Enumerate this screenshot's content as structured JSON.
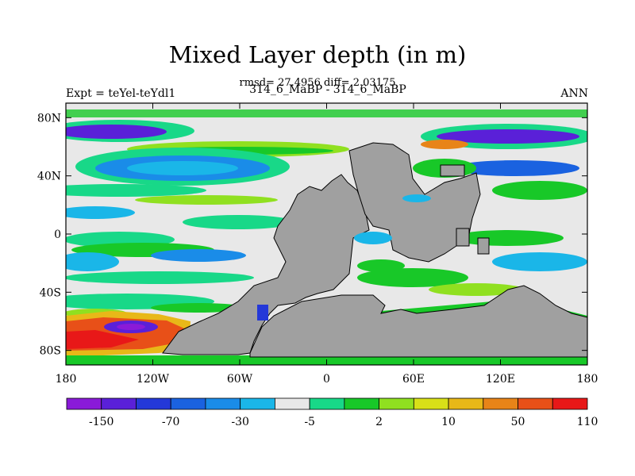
{
  "title": "Mixed Layer depth (in m)",
  "subtitle": "rmsd= 27.4956 diff= 2.03175",
  "left_label": "Expt = teYel-teYdl1",
  "center_label": "314_6_MaBP - 314_6_MaBP",
  "right_label": "ANN",
  "lon_ticks": [
    "180",
    "120W",
    "60W",
    "0",
    "60E",
    "120E",
    "180"
  ],
  "lat_ticks": [
    "80N",
    "40N",
    "0",
    "40S",
    "80S"
  ],
  "colorbar": {
    "labels": [
      "-150",
      "-70",
      "-30",
      "-5",
      "2",
      "10",
      "50",
      "110"
    ],
    "colors": [
      "#8a1ad8",
      "#5a20d8",
      "#2438d8",
      "#1a62e0",
      "#1a8ce8",
      "#1ab6e8",
      "#e8e8e8",
      "#18d888",
      "#18c828",
      "#90e020",
      "#d8e018",
      "#e8b818",
      "#e88418",
      "#e85018",
      "#e81818"
    ]
  },
  "colors": {
    "land": "#a0a0a0",
    "ocean_base": "#e8e8e8"
  }
}
